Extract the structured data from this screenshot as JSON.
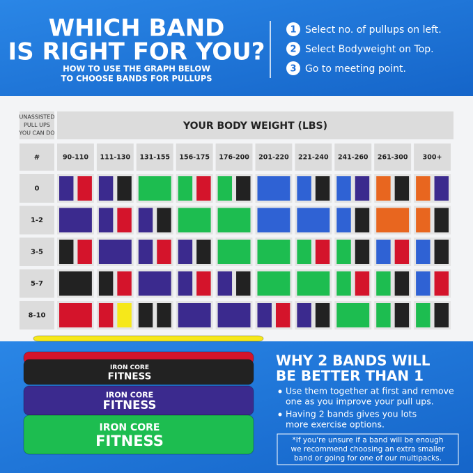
{
  "header": {
    "title_lines": [
      "WHICH BAND",
      "IS RIGHT FOR YOU?"
    ],
    "subtitle_lines": [
      "HOW TO USE THE GRAPH BELOW",
      "TO CHOOSE BANDS FOR PULLUPS"
    ],
    "steps": [
      {
        "number": "1",
        "text": "Select no. of pullups on left."
      },
      {
        "number": "2",
        "text": "Select Bodyweight on Top."
      },
      {
        "number": "3",
        "text": "Go to meeting point."
      }
    ]
  },
  "table": {
    "corner_lines": [
      "UNASSISTED",
      "PULL UPS",
      "YOU CAN DO"
    ],
    "weight_title": "YOUR BODY WEIGHT (LBS)",
    "hash": "#",
    "columns": [
      "90-110",
      "111-130",
      "131-155",
      "156-175",
      "176-200",
      "201-220",
      "221-240",
      "241-260",
      "261-300",
      "300+"
    ],
    "colors": {
      "purple": "#3b2a8e",
      "red": "#d4142b",
      "black": "#222222",
      "green": "#1dbd50",
      "blue": "#2f62d4",
      "orange": "#e8661f",
      "yellow": "#f6e81a"
    },
    "rows": [
      {
        "label": "0",
        "cells": [
          [
            "purple",
            "red"
          ],
          [
            "purple",
            "black"
          ],
          [
            "green"
          ],
          [
            "green",
            "red"
          ],
          [
            "green",
            "black"
          ],
          [
            "blue"
          ],
          [
            "blue",
            "black"
          ],
          [
            "blue",
            "purple"
          ],
          [
            "orange",
            "black"
          ],
          [
            "orange",
            "purple"
          ]
        ]
      },
      {
        "label": "1-2",
        "cells": [
          [
            "purple"
          ],
          [
            "purple",
            "red"
          ],
          [
            "purple",
            "black"
          ],
          [
            "green"
          ],
          [
            "green"
          ],
          [
            "blue"
          ],
          [
            "blue"
          ],
          [
            "blue",
            "black"
          ],
          [
            "orange"
          ],
          [
            "orange",
            "black"
          ]
        ]
      },
      {
        "label": "3-5",
        "cells": [
          [
            "black",
            "red"
          ],
          [
            "purple"
          ],
          [
            "purple",
            "red"
          ],
          [
            "purple",
            "black"
          ],
          [
            "green"
          ],
          [
            "green"
          ],
          [
            "green",
            "red"
          ],
          [
            "green",
            "black"
          ],
          [
            "blue",
            "red"
          ],
          [
            "blue",
            "black"
          ]
        ]
      },
      {
        "label": "5-7",
        "cells": [
          [
            "black"
          ],
          [
            "black",
            "red"
          ],
          [
            "purple"
          ],
          [
            "purple",
            "red"
          ],
          [
            "purple",
            "black"
          ],
          [
            "green"
          ],
          [
            "green"
          ],
          [
            "green",
            "red"
          ],
          [
            "green",
            "black"
          ],
          [
            "blue",
            "red"
          ]
        ]
      },
      {
        "label": "8-10",
        "cells": [
          [
            "red"
          ],
          [
            "red",
            "yellow"
          ],
          [
            "black",
            "black"
          ],
          [
            "purple"
          ],
          [
            "purple"
          ],
          [
            "purple",
            "red"
          ],
          [
            "purple",
            "black"
          ],
          [
            "green"
          ],
          [
            "green",
            "black"
          ],
          [
            "green",
            "black"
          ]
        ]
      }
    ]
  },
  "product": {
    "brand_lines": [
      "IRON CORE",
      "FITNESS"
    ]
  },
  "why": {
    "title_lines": [
      "WHY 2 BANDS WILL",
      "BE BETTER THAN 1"
    ],
    "bullets": [
      [
        "Use them together at first and remove",
        "one as you improve your pull ups."
      ],
      [
        "Having 2 bands gives you lots",
        "more exercise options."
      ]
    ],
    "note_lines": [
      "*If you're unsure if a band will be enough",
      "we recommend choosing an extra smaller",
      "band or going for one of our multipacks."
    ]
  }
}
